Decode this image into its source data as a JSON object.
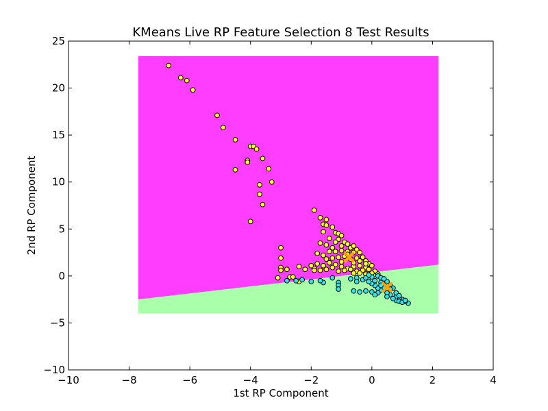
{
  "chart_data": {
    "type": "scatter",
    "title": "KMeans Live RP Feature Selection 8 Test Results",
    "xlabel": "1st RP Component",
    "ylabel": "2nd RP Component",
    "xlim": [
      -10,
      4
    ],
    "ylim": [
      -10,
      25
    ],
    "xticks": [
      -10,
      -8,
      -6,
      -4,
      -2,
      0,
      2,
      4
    ],
    "yticks": [
      -10,
      -5,
      0,
      5,
      10,
      15,
      20,
      25
    ],
    "xtick_labels": [
      "−10",
      "−8",
      "−6",
      "−4",
      "−2",
      "0",
      "2",
      "4"
    ],
    "ytick_labels": [
      "−10",
      "−5",
      "0",
      "5",
      "10",
      "15",
      "20",
      "25"
    ],
    "grid": false,
    "legend": "none",
    "colors": {
      "region_cluster_1": "#ff3dff",
      "region_cluster_2": "#aaffaa",
      "points_cluster_1": "#ffff22",
      "points_cluster_2": "#33e5ee",
      "centroid": "#ffa500"
    },
    "decision_regions": {
      "x_range": [
        -7.7,
        2.2
      ],
      "y_range": [
        -4.0,
        23.4
      ],
      "boundary_line": [
        [
          -7.7,
          -2.5
        ],
        [
          2.2,
          1.2
        ]
      ],
      "above": "region_cluster_1",
      "below": "region_cluster_2"
    },
    "centroids": [
      {
        "x": -0.75,
        "y": 2.0
      },
      {
        "x": 0.5,
        "y": -1.2
      }
    ],
    "series": [
      {
        "color": "points_cluster_1",
        "points": [
          [
            -6.7,
            22.4
          ],
          [
            -6.3,
            21.1
          ],
          [
            -6.1,
            20.8
          ],
          [
            -5.9,
            19.8
          ],
          [
            -5.1,
            17.1
          ],
          [
            -4.9,
            15.8
          ],
          [
            -4.5,
            14.5
          ],
          [
            -4.0,
            13.8
          ],
          [
            -3.9,
            13.8
          ],
          [
            -3.8,
            13.5
          ],
          [
            -3.6,
            12.5
          ],
          [
            -4.1,
            12.3
          ],
          [
            -4.1,
            12.1
          ],
          [
            -3.4,
            11.4
          ],
          [
            -4.5,
            11.3
          ],
          [
            -3.3,
            10.0
          ],
          [
            -3.7,
            9.7
          ],
          [
            -3.7,
            8.7
          ],
          [
            -3.6,
            7.6
          ],
          [
            -4.0,
            5.8
          ],
          [
            -1.9,
            7.0
          ],
          [
            -1.7,
            6.2
          ],
          [
            -1.5,
            6.0
          ],
          [
            -1.6,
            5.5
          ],
          [
            -1.5,
            5.4
          ],
          [
            -1.3,
            5.2
          ],
          [
            -1.6,
            4.7
          ],
          [
            -1.2,
            4.6
          ],
          [
            -1.4,
            4.0
          ],
          [
            -1.1,
            4.5
          ],
          [
            -1.0,
            4.3
          ],
          [
            -1.1,
            3.9
          ],
          [
            -0.9,
            3.6
          ],
          [
            -1.2,
            3.6
          ],
          [
            -1.5,
            3.3
          ],
          [
            -1.7,
            3.5
          ],
          [
            -1.3,
            3.0
          ],
          [
            -1.0,
            3.2
          ],
          [
            -0.8,
            3.4
          ],
          [
            -0.7,
            3.0
          ],
          [
            -0.6,
            3.2
          ],
          [
            -0.5,
            2.8
          ],
          [
            -0.4,
            2.5
          ],
          [
            -0.6,
            2.5
          ],
          [
            -0.8,
            2.6
          ],
          [
            -1.0,
            2.7
          ],
          [
            -1.2,
            2.6
          ],
          [
            -1.4,
            2.6
          ],
          [
            -1.6,
            2.2
          ],
          [
            -1.8,
            2.4
          ],
          [
            -1.5,
            1.8
          ],
          [
            -1.3,
            1.9
          ],
          [
            -1.1,
            2.0
          ],
          [
            -0.9,
            2.1
          ],
          [
            -0.7,
            1.8
          ],
          [
            -0.5,
            1.9
          ],
          [
            -0.3,
            2.0
          ],
          [
            -0.2,
            1.6
          ],
          [
            -0.1,
            1.3
          ],
          [
            0.0,
            1.1
          ],
          [
            -0.2,
            0.9
          ],
          [
            -0.4,
            1.1
          ],
          [
            -0.6,
            1.0
          ],
          [
            -0.8,
            0.8
          ],
          [
            -1.0,
            1.0
          ],
          [
            -1.2,
            1.2
          ],
          [
            -1.4,
            1.4
          ],
          [
            -1.6,
            1.1
          ],
          [
            -1.8,
            1.3
          ],
          [
            -1.9,
            0.8
          ],
          [
            -1.7,
            0.6
          ],
          [
            -1.5,
            0.7
          ],
          [
            -1.3,
            0.9
          ],
          [
            -1.1,
            0.5
          ],
          [
            -0.9,
            0.6
          ],
          [
            -0.7,
            0.7
          ],
          [
            -0.5,
            0.5
          ],
          [
            -0.3,
            0.6
          ],
          [
            -0.1,
            0.7
          ],
          [
            0.1,
            0.5
          ],
          [
            0.2,
            0.2
          ],
          [
            0.0,
            0.3
          ],
          [
            -0.2,
            0.2
          ],
          [
            -0.4,
            0.3
          ],
          [
            -0.6,
            0.3
          ],
          [
            -0.8,
            2.3
          ],
          [
            -1.0,
            1.5
          ],
          [
            -0.6,
            1.4
          ],
          [
            -0.4,
            1.6
          ],
          [
            -0.2,
            1.3
          ],
          [
            -3.0,
            3.0
          ],
          [
            -3.0,
            1.9
          ],
          [
            -3.0,
            0.9
          ],
          [
            -3.0,
            0.6
          ],
          [
            -2.8,
            0.7
          ],
          [
            -3.1,
            -0.2
          ],
          [
            -2.4,
            1.0
          ],
          [
            -2.2,
            0.7
          ],
          [
            -2.0,
            1.1
          ],
          [
            -1.9,
            0.6
          ],
          [
            -2.7,
            -0.1
          ],
          [
            -2.6,
            -0.1
          ],
          [
            -2.4,
            -0.6
          ]
        ]
      },
      {
        "color": "points_cluster_2",
        "points": [
          [
            1.2,
            -2.9
          ],
          [
            1.1,
            -2.7
          ],
          [
            1.0,
            -2.5
          ],
          [
            0.9,
            -2.4
          ],
          [
            0.8,
            -2.6
          ],
          [
            0.8,
            -2.2
          ],
          [
            0.6,
            -2.0
          ],
          [
            0.5,
            -1.8
          ],
          [
            0.5,
            -2.2
          ],
          [
            0.7,
            -2.4
          ],
          [
            0.9,
            -2.7
          ],
          [
            1.0,
            -2.8
          ],
          [
            0.3,
            -1.5
          ],
          [
            0.2,
            -1.3
          ],
          [
            0.1,
            -1.0
          ],
          [
            0.0,
            -0.8
          ],
          [
            -0.1,
            -0.6
          ],
          [
            0.1,
            -0.5
          ],
          [
            0.3,
            -0.7
          ],
          [
            0.4,
            -0.9
          ],
          [
            0.5,
            -0.6
          ],
          [
            0.6,
            -1.0
          ],
          [
            0.7,
            -1.3
          ],
          [
            0.4,
            -1.2
          ],
          [
            0.2,
            -1.8
          ],
          [
            0.0,
            -1.7
          ],
          [
            0.1,
            -2.0
          ],
          [
            -0.2,
            -1.6
          ],
          [
            -0.4,
            -1.7
          ],
          [
            -0.6,
            -1.6
          ],
          [
            -0.3,
            -0.4
          ],
          [
            -0.5,
            -0.2
          ],
          [
            -0.7,
            -0.3
          ],
          [
            -0.5,
            -0.6
          ],
          [
            -0.2,
            -0.2
          ],
          [
            0.0,
            -0.1
          ],
          [
            0.2,
            0.0
          ],
          [
            -0.1,
            0.1
          ],
          [
            0.3,
            -0.2
          ],
          [
            0.4,
            -0.3
          ],
          [
            -1.1,
            -0.7
          ],
          [
            -1.1,
            -1.0
          ],
          [
            -1.1,
            -1.4
          ],
          [
            -1.3,
            -0.2
          ],
          [
            -1.6,
            -0.7
          ],
          [
            -1.7,
            -0.5
          ],
          [
            -2.0,
            -0.6
          ],
          [
            -2.3,
            -0.4
          ],
          [
            -2.5,
            -0.5
          ],
          [
            -2.8,
            -0.5
          ],
          [
            0.6,
            -1.4
          ],
          [
            0.8,
            -1.8
          ],
          [
            0.9,
            -2.1
          ],
          [
            1.1,
            -2.6
          ],
          [
            0.3,
            -1.0
          ]
        ]
      }
    ]
  }
}
